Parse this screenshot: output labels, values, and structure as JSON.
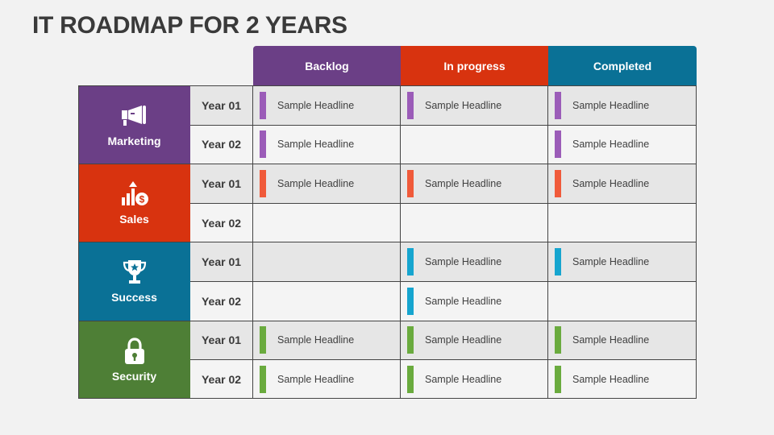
{
  "title": "IT ROADMAP FOR 2 YEARS",
  "columns": [
    {
      "label": "Backlog",
      "color": "#6b3f86"
    },
    {
      "label": "In progress",
      "color": "#d8330f"
    },
    {
      "label": "Completed",
      "color": "#0a7196"
    }
  ],
  "categories": [
    {
      "label": "Marketing",
      "icon": "megaphone-icon",
      "color": "#6b3f86",
      "bar_color": "#9b5cb8"
    },
    {
      "label": "Sales",
      "icon": "sales-chart-icon",
      "color": "#d8330f",
      "bar_color": "#f05a3a"
    },
    {
      "label": "Success",
      "icon": "trophy-icon",
      "color": "#0a7196",
      "bar_color": "#16a5cf"
    },
    {
      "label": "Security",
      "icon": "lock-icon",
      "color": "#4e7f36",
      "bar_color": "#6aab3e"
    }
  ],
  "year_labels": [
    "Year 01",
    "Year 02"
  ],
  "rows": [
    {
      "category": 0,
      "year": 0,
      "cells": [
        "Sample Headline",
        "Sample Headline",
        "Sample Headline"
      ]
    },
    {
      "category": 0,
      "year": 1,
      "cells": [
        "Sample Headline",
        "",
        "Sample Headline"
      ]
    },
    {
      "category": 1,
      "year": 0,
      "cells": [
        "Sample Headline",
        "Sample Headline",
        "Sample Headline"
      ]
    },
    {
      "category": 1,
      "year": 1,
      "cells": [
        "",
        "",
        ""
      ]
    },
    {
      "category": 2,
      "year": 0,
      "cells": [
        "",
        "Sample Headline",
        "Sample Headline"
      ]
    },
    {
      "category": 2,
      "year": 1,
      "cells": [
        "",
        "Sample Headline",
        ""
      ]
    },
    {
      "category": 3,
      "year": 0,
      "cells": [
        "Sample Headline",
        "Sample Headline",
        "Sample Headline"
      ]
    },
    {
      "category": 3,
      "year": 1,
      "cells": [
        "Sample Headline",
        "Sample Headline",
        "Sample Headline"
      ]
    }
  ]
}
